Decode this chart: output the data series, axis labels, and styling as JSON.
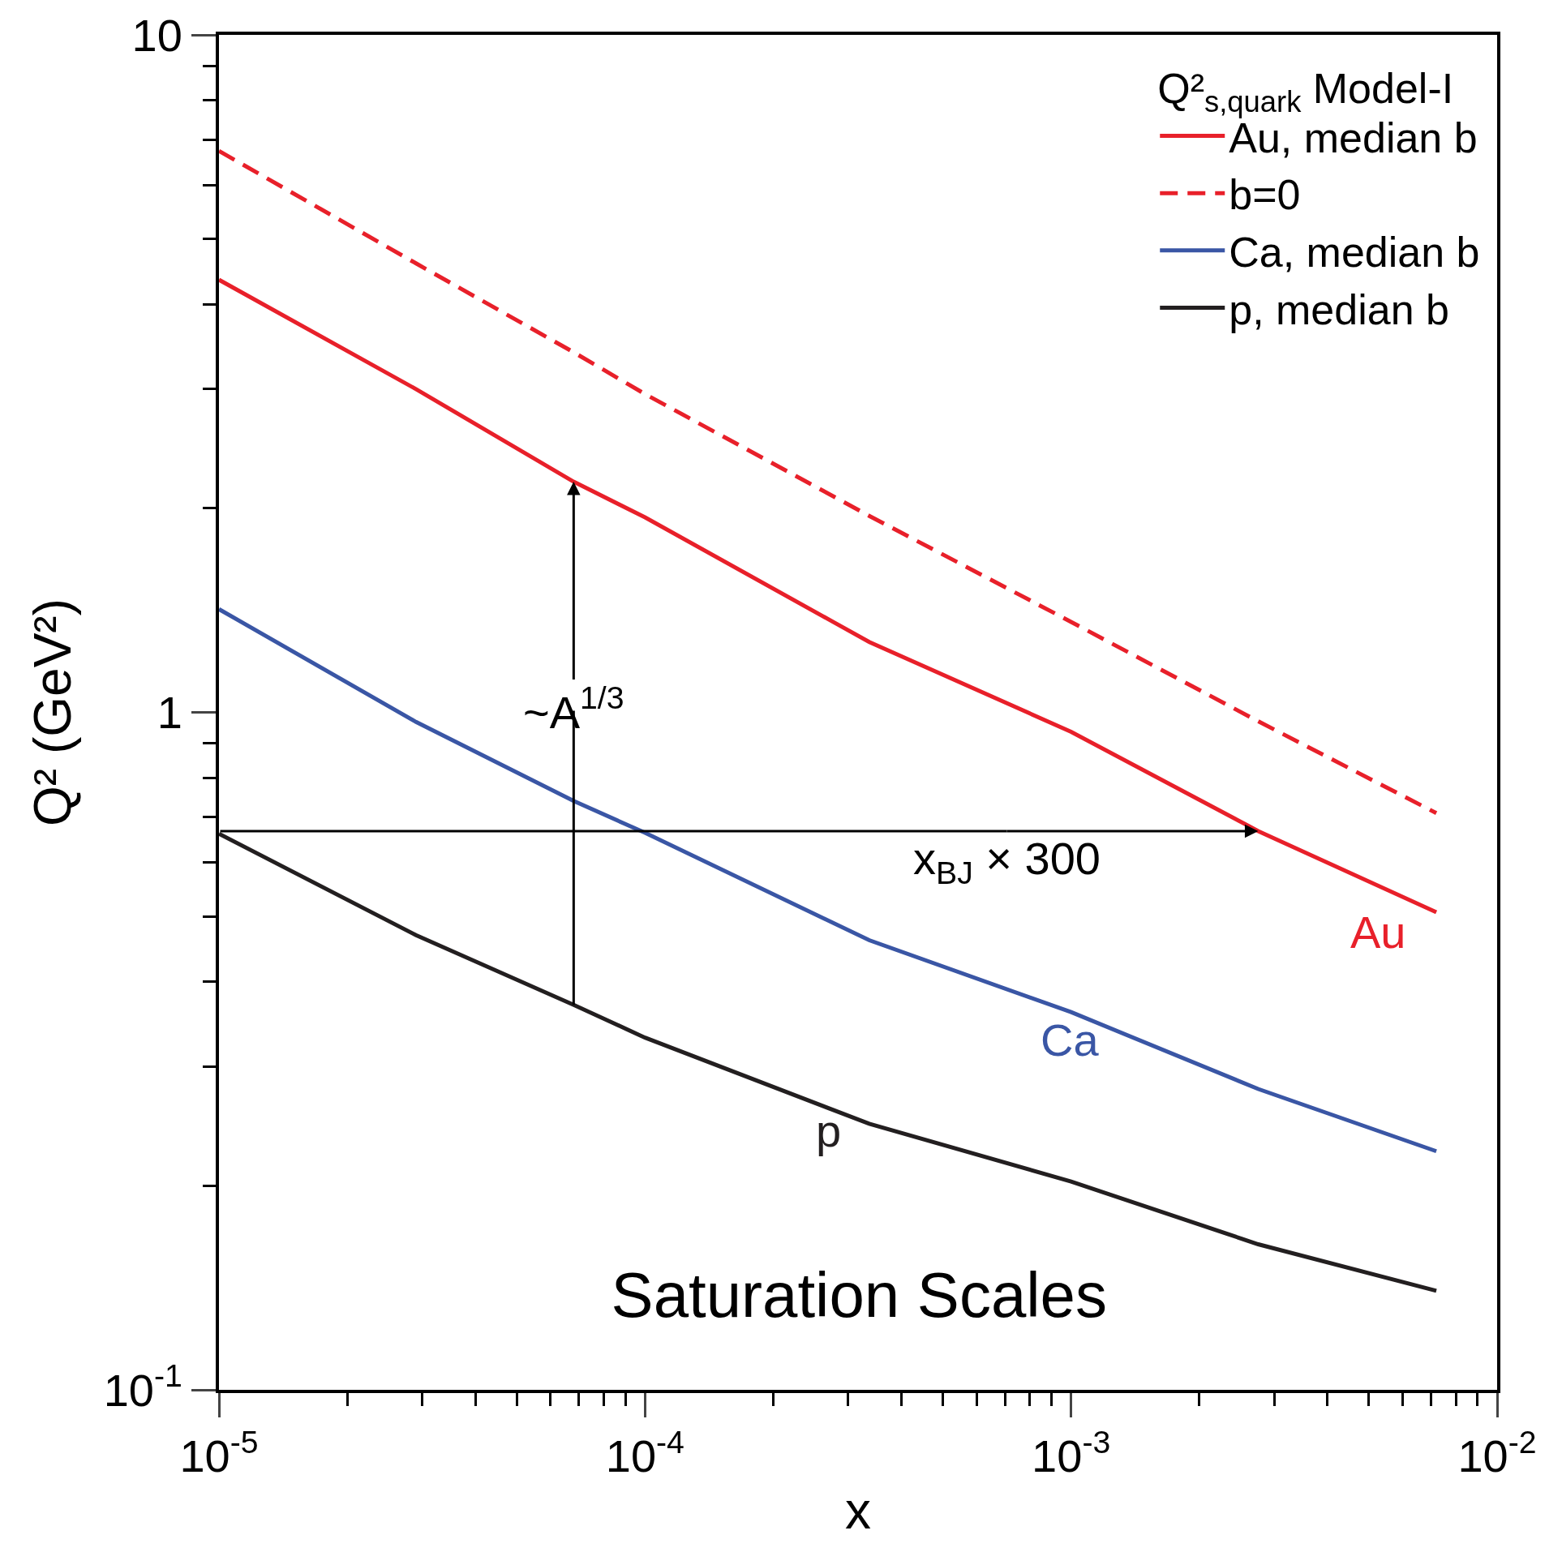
{
  "chart_data": {
    "type": "line",
    "title": "Saturation Scales",
    "xlabel": "x",
    "ylabel": "Q² (GeV²)",
    "legend_title": "Q²$_{s,quark}$ Model-I",
    "log": "xy",
    "legend": "top right",
    "marker": "none",
    "xlim": [
      1e-05,
      0.01
    ],
    "ylim": [
      0.1,
      10
    ],
    "xticks": [
      {
        "value": 1e-05,
        "label": "10$^{-5}$"
      },
      {
        "value": 2e-05,
        "label": null
      },
      {
        "value": 3e-05,
        "label": null
      },
      {
        "value": 4e-05,
        "label": null
      },
      {
        "value": 5e-05,
        "label": null
      },
      {
        "value": 6e-05,
        "label": null
      },
      {
        "value": 7e-05,
        "label": null
      },
      {
        "value": 8e-05,
        "label": null
      },
      {
        "value": 9e-05,
        "label": null
      },
      {
        "value": 0.0001,
        "label": "10$^{-4}$"
      },
      {
        "value": 0.0002,
        "label": null
      },
      {
        "value": 0.0003,
        "label": null
      },
      {
        "value": 0.0004,
        "label": null
      },
      {
        "value": 0.0005,
        "label": null
      },
      {
        "value": 0.0006,
        "label": null
      },
      {
        "value": 0.0007,
        "label": null
      },
      {
        "value": 0.0008,
        "label": null
      },
      {
        "value": 0.0009,
        "label": null
      },
      {
        "value": 0.001,
        "label": "10$^{-3}$"
      },
      {
        "value": 0.002,
        "label": null
      },
      {
        "value": 0.003,
        "label": null
      },
      {
        "value": 0.004,
        "label": null
      },
      {
        "value": 0.005,
        "label": null
      },
      {
        "value": 0.006,
        "label": null
      },
      {
        "value": 0.007,
        "label": null
      },
      {
        "value": 0.008,
        "label": null
      },
      {
        "value": 0.009,
        "label": null
      },
      {
        "value": 0.01,
        "label": "10$^{-2}$"
      }
    ],
    "yticks": [
      {
        "value": 0.1,
        "label": "10$^{-1}$"
      },
      {
        "value": 0.2,
        "label": null
      },
      {
        "value": 0.3,
        "label": null
      },
      {
        "value": 0.4,
        "label": null
      },
      {
        "value": 0.5,
        "label": null
      },
      {
        "value": 0.6,
        "label": null
      },
      {
        "value": 0.7,
        "label": null
      },
      {
        "value": 0.8,
        "label": null
      },
      {
        "value": 0.9,
        "label": null
      },
      {
        "value": 1,
        "label": "1"
      },
      {
        "value": 2,
        "label": null
      },
      {
        "value": 3,
        "label": null
      },
      {
        "value": 4,
        "label": null
      },
      {
        "value": 5,
        "label": null
      },
      {
        "value": 6,
        "label": null
      },
      {
        "value": 7,
        "label": null
      },
      {
        "value": 8,
        "label": null
      },
      {
        "value": 9,
        "label": null
      },
      {
        "value": 10,
        "label": "10"
      }
    ],
    "x": [
      1e-05,
      2.9e-05,
      6.8e-05,
      0.0001,
      0.000336,
      0.001,
      0.00275,
      0.0072
    ],
    "series": [
      {
        "name": "Au, median b",
        "color": "#e8202a",
        "line_style": "solid",
        "values": [
          4.35,
          3.0,
          2.19,
          1.94,
          1.27,
          0.936,
          0.668,
          0.507
        ]
      },
      {
        "name": "b=0",
        "color": "#e8202a",
        "line_style": "dashed",
        "values": [
          6.74,
          4.6,
          3.4,
          2.95,
          1.95,
          1.36,
          0.97,
          0.71
        ]
      },
      {
        "name": "Ca, median b",
        "color": "#3a56a5",
        "line_style": "solid",
        "values": [
          1.42,
          0.968,
          0.74,
          0.664,
          0.461,
          0.361,
          0.278,
          0.225
        ]
      },
      {
        "name": "p, median b",
        "color": "#231f20",
        "line_style": "solid",
        "values": [
          0.662,
          0.469,
          0.37,
          0.331,
          0.247,
          0.203,
          0.164,
          0.14
        ]
      }
    ],
    "annotations": [
      {
        "text": "~A$^{1/3}$",
        "x": 6.8e-05,
        "y": 2.19
      },
      {
        "text": "x$_{BJ}$ × 300",
        "x": 0.00275,
        "y": 0.668
      },
      "Au",
      "Ca",
      "p"
    ]
  }
}
